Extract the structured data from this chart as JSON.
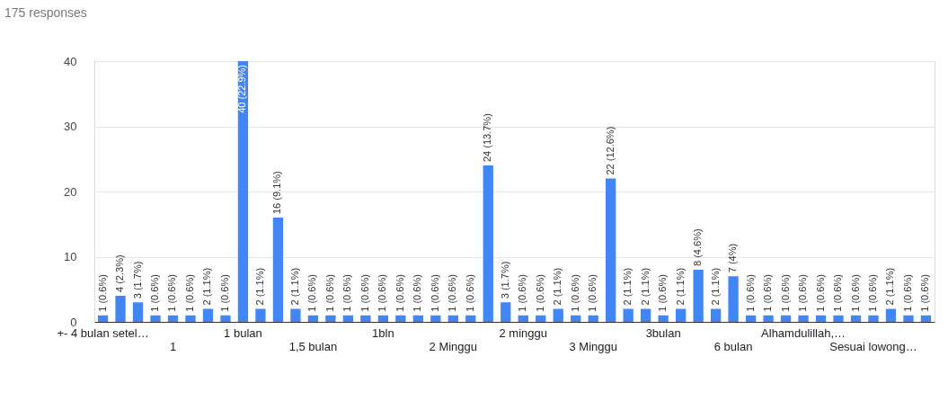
{
  "chart_data": {
    "type": "bar",
    "title": "175 responses",
    "categories": [
      "+- 4 bulan setel…",
      null,
      null,
      null,
      "1",
      null,
      null,
      null,
      "1 bulan",
      null,
      null,
      null,
      "1,5 bulan",
      null,
      null,
      null,
      "1bln",
      null,
      null,
      null,
      "2 Minggu",
      null,
      null,
      null,
      "2 minggu",
      null,
      null,
      null,
      "3 Minggu",
      null,
      null,
      null,
      "3bulan",
      null,
      null,
      null,
      "6 bulan",
      null,
      null,
      null,
      "Alhamdulillah,…",
      null,
      null,
      null,
      "Sesuai lowong…",
      null,
      null,
      null
    ],
    "values": [
      1,
      4,
      3,
      1,
      1,
      1,
      2,
      1,
      40,
      2,
      16,
      2,
      1,
      1,
      1,
      1,
      1,
      1,
      1,
      1,
      1,
      1,
      24,
      3,
      1,
      1,
      2,
      1,
      1,
      22,
      2,
      2,
      1,
      2,
      8,
      2,
      7,
      1,
      1,
      1,
      1,
      1,
      1,
      1,
      1,
      2,
      1,
      1
    ],
    "value_labels": [
      "1 (0.6%)",
      "4 (2.3%)",
      "3 (1.7%)",
      "1 (0.6%)",
      "1 (0.6%)",
      "1 (0.6%)",
      "2 (1.1%)",
      "1 (0.6%)",
      "40 (22.9%)",
      "2 (1.1%)",
      "16 (9.1%)",
      "2 (1.1%)",
      "1 (0.6%)",
      "1 (0.6%)",
      "1 (0.6%)",
      "1 (0.6%)",
      "1 (0.6%)",
      "1 (0.6%)",
      "1 (0.6%)",
      "1 (0.6%)",
      "1 (0.6%)",
      "1 (0.6%)",
      "24 (13.7%)",
      "3 (1.7%)",
      "1 (0.6%)",
      "1 (0.6%)",
      "2 (1.1%)",
      "1 (0.6%)",
      "1 (0.6%)",
      "22 (12.6%)",
      "2 (1.1%)",
      "2 (1.1%)",
      "1 (0.6%)",
      "2 (1.1%)",
      "8 (4.6%)",
      "2 (1.1%)",
      "7 (4%)",
      "1 (0.6%)",
      "1 (0.6%)",
      "1 (0.6%)",
      "1 (0.6%)",
      "1 (0.6%)",
      "1 (0.6%)",
      "1 (0.6%)",
      "1 (0.6%)",
      "2 (1.1%)",
      "1 (0.6%)",
      "1 (0.6%)"
    ],
    "color": "#4285f4",
    "ylim": [
      0,
      40
    ],
    "yticks": [
      0,
      10,
      20,
      30,
      40
    ],
    "grid": "y"
  }
}
